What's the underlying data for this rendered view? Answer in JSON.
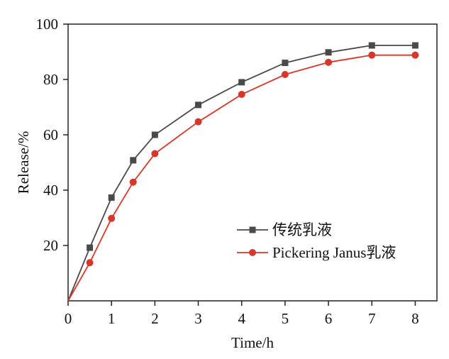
{
  "chart_data": {
    "type": "line",
    "xlabel": "Time/h",
    "ylabel": "Release/%",
    "xlim": [
      0,
      8.5
    ],
    "ylim": [
      0,
      100
    ],
    "xticks": [
      0,
      1,
      2,
      3,
      4,
      5,
      6,
      7,
      8
    ],
    "yticks": [
      20,
      40,
      60,
      80,
      100
    ],
    "x_tick_labels": [
      "0",
      "1",
      "2",
      "3",
      "4",
      "5",
      "6",
      "7",
      "8"
    ],
    "y_tick_labels": [
      "20",
      "40",
      "60",
      "80",
      "100"
    ],
    "grid": false,
    "legend_position": "center-right",
    "series": [
      {
        "name": "传统乳液",
        "color": "#4a4a4a",
        "marker": "square",
        "x": [
          0,
          0.5,
          1,
          1.5,
          2,
          3,
          4,
          5,
          6,
          7,
          8
        ],
        "y": [
          0,
          19.2,
          37.3,
          50.8,
          60.0,
          70.8,
          79.0,
          86.0,
          89.8,
          92.3,
          92.3
        ]
      },
      {
        "name": "Pickering Janus乳液",
        "color": "#d6372b",
        "marker": "circle",
        "x": [
          0,
          0.5,
          1,
          1.5,
          2,
          3,
          4,
          5,
          6,
          7,
          8
        ],
        "y": [
          0,
          13.8,
          29.8,
          42.9,
          53.2,
          64.7,
          74.6,
          81.8,
          86.2,
          88.8,
          88.8
        ]
      }
    ]
  }
}
